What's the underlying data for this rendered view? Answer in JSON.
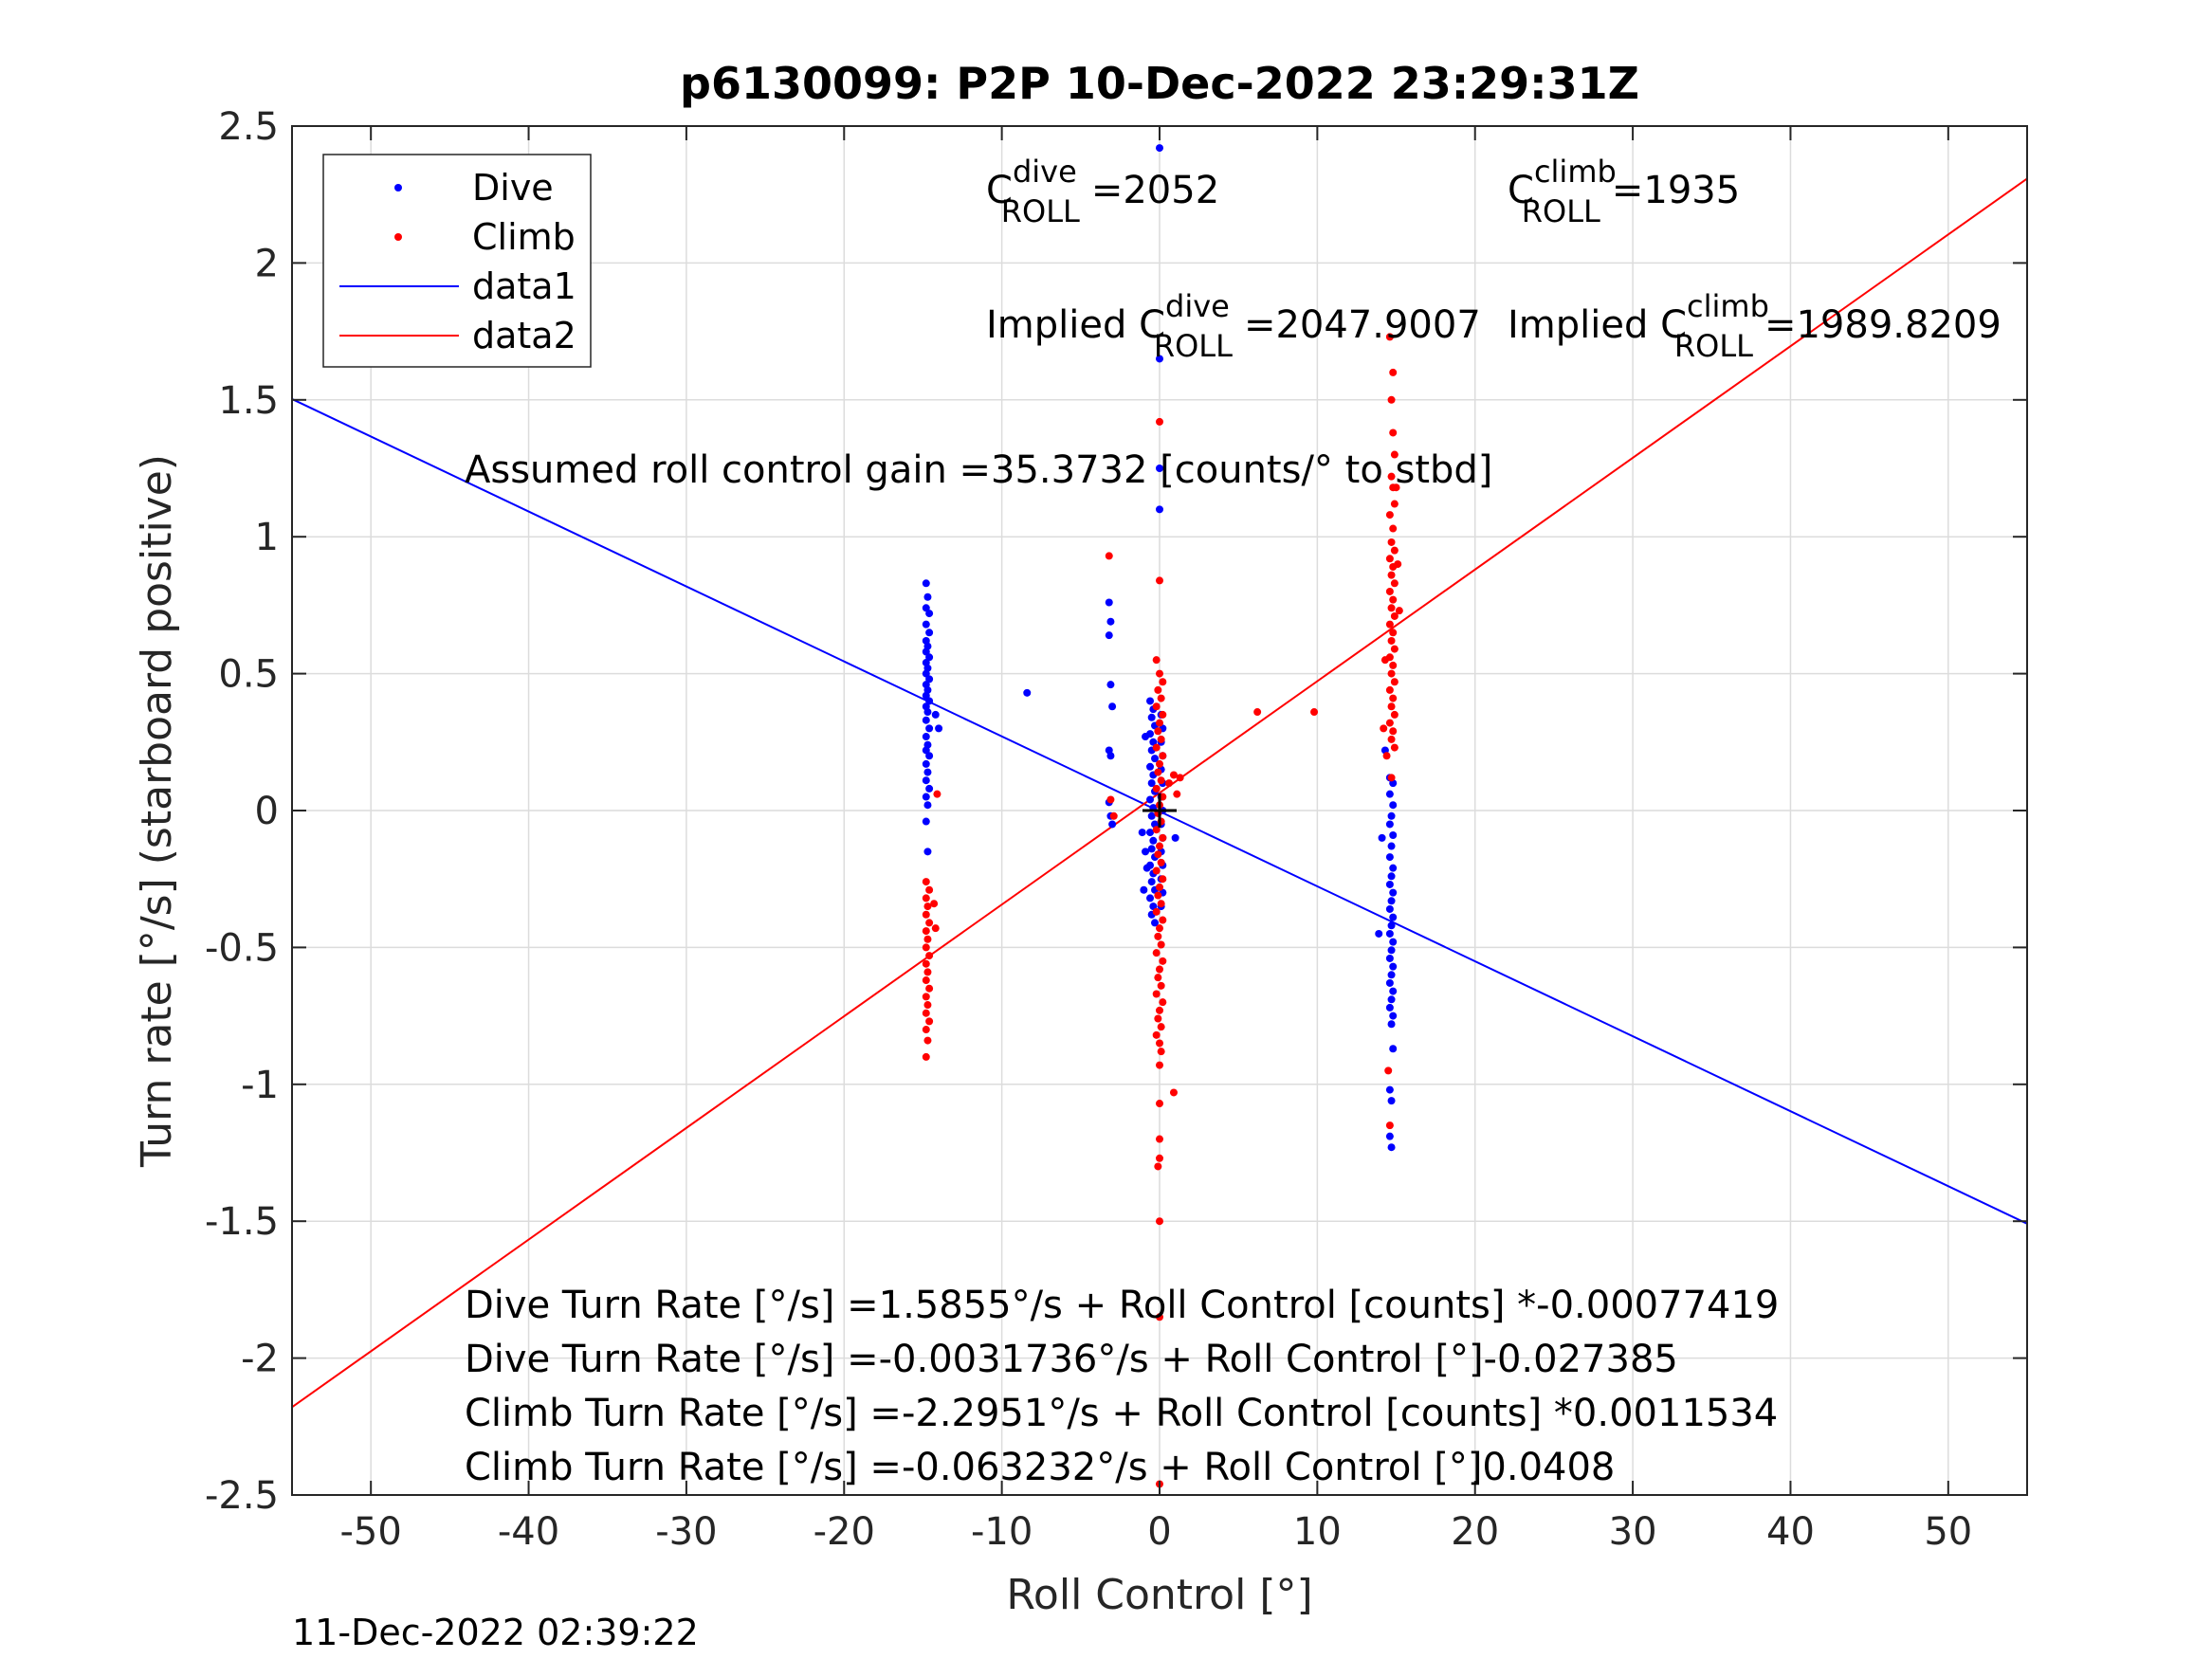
{
  "footer_timestamp": "11-Dec-2022 02:39:22",
  "chart_data": {
    "type": "scatter",
    "title": "p6130099: P2P 10-Dec-2022 23:29:31Z",
    "xlabel": "Roll Control [°]",
    "ylabel": "Turn rate [°/s] (starboard positive)",
    "xlim": [
      -55,
      55
    ],
    "ylim": [
      -2.5,
      2.5
    ],
    "xticks": [
      -50,
      -40,
      -30,
      -20,
      -10,
      0,
      10,
      20,
      30,
      40,
      50
    ],
    "xtick_labels": [
      "-50",
      "-40",
      "-30",
      "-20",
      "-10",
      "0",
      "10",
      "20",
      "30",
      "40",
      "50"
    ],
    "yticks": [
      -2.5,
      -2,
      -1.5,
      -1,
      -0.5,
      0,
      0.5,
      1,
      1.5,
      2,
      2.5
    ],
    "ytick_labels": [
      "-2.5",
      "-2",
      "-1.5",
      "-1",
      "-0.5",
      "0",
      "0.5",
      "1",
      "1.5",
      "2",
      "2.5"
    ],
    "grid": true,
    "legend_position": "top-left",
    "legend": [
      {
        "label": "Dive",
        "kind": "marker",
        "color": "#0000ff"
      },
      {
        "label": "Climb",
        "kind": "marker",
        "color": "#ff0000"
      },
      {
        "label": "data1",
        "kind": "line",
        "color": "#0000ff"
      },
      {
        "label": "data2",
        "kind": "line",
        "color": "#ff0000"
      }
    ],
    "lines": [
      {
        "name": "data1",
        "color": "#0000ff",
        "x": [
          -55,
          55
        ],
        "y": [
          1.503,
          -1.509
        ]
      },
      {
        "name": "data2",
        "color": "#ff0000",
        "x": [
          -55,
          55
        ],
        "y": [
          -2.179,
          2.308
        ]
      }
    ],
    "series": [
      {
        "name": "Dive",
        "color": "#0000ff",
        "points": [
          [
            -14.8,
            0.83
          ],
          [
            -14.7,
            0.78
          ],
          [
            -14.8,
            0.74
          ],
          [
            -14.6,
            0.72
          ],
          [
            -14.8,
            0.68
          ],
          [
            -14.6,
            0.65
          ],
          [
            -14.8,
            0.62
          ],
          [
            -14.7,
            0.6
          ],
          [
            -14.8,
            0.58
          ],
          [
            -14.6,
            0.56
          ],
          [
            -14.8,
            0.54
          ],
          [
            -14.7,
            0.52
          ],
          [
            -14.8,
            0.5
          ],
          [
            -14.6,
            0.48
          ],
          [
            -14.8,
            0.46
          ],
          [
            -14.7,
            0.44
          ],
          [
            -14.8,
            0.42
          ],
          [
            -14.6,
            0.4
          ],
          [
            -14.8,
            0.38
          ],
          [
            -14.7,
            0.36
          ],
          [
            -14.8,
            0.33
          ],
          [
            -14.6,
            0.3
          ],
          [
            -14.8,
            0.27
          ],
          [
            -14.7,
            0.24
          ],
          [
            -14.8,
            0.22
          ],
          [
            -14.6,
            0.2
          ],
          [
            -14.8,
            0.17
          ],
          [
            -14.7,
            0.14
          ],
          [
            -14.8,
            0.11
          ],
          [
            -14.6,
            0.08
          ],
          [
            -14.8,
            0.05
          ],
          [
            -14.7,
            0.02
          ],
          [
            -14.8,
            -0.04
          ],
          [
            -14.7,
            -0.15
          ],
          [
            -14.2,
            0.35
          ],
          [
            -14.0,
            0.3
          ],
          [
            -8.4,
            0.43
          ],
          [
            -3.2,
            0.76
          ],
          [
            -3.1,
            0.69
          ],
          [
            -3.2,
            0.64
          ],
          [
            -3.1,
            0.46
          ],
          [
            -3.0,
            0.38
          ],
          [
            -3.2,
            0.22
          ],
          [
            -3.1,
            0.2
          ],
          [
            -3.2,
            0.03
          ],
          [
            -3.1,
            -0.02
          ],
          [
            -3.0,
            -0.05
          ],
          [
            0.0,
            2.42
          ],
          [
            0.0,
            1.65
          ],
          [
            0.0,
            1.25
          ],
          [
            0.0,
            1.1
          ],
          [
            -0.6,
            0.4
          ],
          [
            -0.4,
            0.37
          ],
          [
            -0.5,
            0.34
          ],
          [
            -0.3,
            0.31
          ],
          [
            -0.6,
            0.28
          ],
          [
            -0.4,
            0.25
          ],
          [
            -0.5,
            0.22
          ],
          [
            -0.3,
            0.19
          ],
          [
            -0.6,
            0.16
          ],
          [
            -0.4,
            0.13
          ],
          [
            -0.5,
            0.1
          ],
          [
            -0.3,
            0.07
          ],
          [
            -0.6,
            0.04
          ],
          [
            -0.4,
            0.01
          ],
          [
            -0.5,
            -0.02
          ],
          [
            -0.3,
            -0.05
          ],
          [
            -0.6,
            -0.08
          ],
          [
            -0.4,
            -0.11
          ],
          [
            -0.5,
            -0.14
          ],
          [
            -0.3,
            -0.17
          ],
          [
            -0.6,
            -0.2
          ],
          [
            -0.4,
            -0.23
          ],
          [
            -0.5,
            -0.26
          ],
          [
            -0.3,
            -0.29
          ],
          [
            -0.6,
            -0.32
          ],
          [
            -0.4,
            -0.35
          ],
          [
            -0.5,
            -0.38
          ],
          [
            -0.3,
            -0.41
          ],
          [
            0.1,
            0.35
          ],
          [
            0.2,
            0.3
          ],
          [
            0.1,
            0.25
          ],
          [
            0.2,
            0.2
          ],
          [
            0.1,
            0.15
          ],
          [
            0.2,
            0.1
          ],
          [
            0.1,
            0.05
          ],
          [
            0.2,
            0.0
          ],
          [
            0.1,
            -0.05
          ],
          [
            0.2,
            -0.1
          ],
          [
            0.1,
            -0.15
          ],
          [
            0.2,
            -0.2
          ],
          [
            0.1,
            -0.25
          ],
          [
            0.2,
            -0.3
          ],
          [
            0.1,
            -0.35
          ],
          [
            -0.9,
            0.27
          ],
          [
            -1.1,
            -0.08
          ],
          [
            -0.9,
            -0.15
          ],
          [
            -0.8,
            -0.21
          ],
          [
            -1.0,
            -0.29
          ],
          [
            1.0,
            -0.1
          ],
          [
            14.3,
            0.22
          ],
          [
            14.6,
            0.12
          ],
          [
            14.8,
            0.1
          ],
          [
            14.6,
            0.06
          ],
          [
            14.8,
            0.02
          ],
          [
            14.7,
            -0.02
          ],
          [
            14.6,
            -0.05
          ],
          [
            14.8,
            -0.09
          ],
          [
            14.7,
            -0.13
          ],
          [
            14.6,
            -0.17
          ],
          [
            14.8,
            -0.21
          ],
          [
            14.7,
            -0.24
          ],
          [
            14.6,
            -0.27
          ],
          [
            14.8,
            -0.3
          ],
          [
            14.7,
            -0.33
          ],
          [
            14.6,
            -0.36
          ],
          [
            14.8,
            -0.39
          ],
          [
            14.7,
            -0.42
          ],
          [
            14.6,
            -0.45
          ],
          [
            14.8,
            -0.48
          ],
          [
            14.7,
            -0.51
          ],
          [
            14.6,
            -0.54
          ],
          [
            14.8,
            -0.57
          ],
          [
            14.7,
            -0.6
          ],
          [
            14.6,
            -0.63
          ],
          [
            14.8,
            -0.66
          ],
          [
            14.7,
            -0.69
          ],
          [
            14.6,
            -0.72
          ],
          [
            14.8,
            -0.75
          ],
          [
            14.7,
            -0.78
          ],
          [
            14.8,
            -0.87
          ],
          [
            14.6,
            -1.02
          ],
          [
            14.7,
            -1.06
          ],
          [
            14.6,
            -1.19
          ],
          [
            14.7,
            -1.23
          ],
          [
            13.9,
            -0.45
          ],
          [
            14.1,
            -0.1
          ]
        ]
      },
      {
        "name": "Climb",
        "color": "#ff0000",
        "points": [
          [
            -14.8,
            -0.26
          ],
          [
            -14.6,
            -0.29
          ],
          [
            -14.8,
            -0.32
          ],
          [
            -14.7,
            -0.35
          ],
          [
            -14.8,
            -0.38
          ],
          [
            -14.6,
            -0.41
          ],
          [
            -14.8,
            -0.44
          ],
          [
            -14.7,
            -0.47
          ],
          [
            -14.8,
            -0.5
          ],
          [
            -14.6,
            -0.53
          ],
          [
            -14.8,
            -0.56
          ],
          [
            -14.7,
            -0.59
          ],
          [
            -14.8,
            -0.62
          ],
          [
            -14.6,
            -0.65
          ],
          [
            -14.8,
            -0.68
          ],
          [
            -14.7,
            -0.71
          ],
          [
            -14.8,
            -0.74
          ],
          [
            -14.6,
            -0.77
          ],
          [
            -14.8,
            -0.8
          ],
          [
            -14.7,
            -0.84
          ],
          [
            -14.8,
            -0.9
          ],
          [
            -14.3,
            -0.34
          ],
          [
            -14.2,
            -0.43
          ],
          [
            -14.1,
            0.06
          ],
          [
            -3.2,
            0.93
          ],
          [
            -3.1,
            0.04
          ],
          [
            -2.9,
            -0.02
          ],
          [
            0.0,
            1.42
          ],
          [
            0.0,
            0.84
          ],
          [
            0.0,
            -1.5
          ],
          [
            0.0,
            -1.85
          ],
          [
            0.0,
            -2.46
          ],
          [
            -0.2,
            0.55
          ],
          [
            0.0,
            0.5
          ],
          [
            0.2,
            0.47
          ],
          [
            -0.1,
            0.44
          ],
          [
            0.1,
            0.41
          ],
          [
            -0.2,
            0.38
          ],
          [
            0.2,
            0.35
          ],
          [
            0.0,
            0.32
          ],
          [
            -0.1,
            0.29
          ],
          [
            0.1,
            0.26
          ],
          [
            -0.2,
            0.23
          ],
          [
            0.2,
            0.2
          ],
          [
            0.0,
            0.17
          ],
          [
            -0.1,
            0.14
          ],
          [
            0.1,
            0.11
          ],
          [
            -0.2,
            0.08
          ],
          [
            0.2,
            0.05
          ],
          [
            0.0,
            0.02
          ],
          [
            -0.1,
            -0.01
          ],
          [
            0.1,
            -0.04
          ],
          [
            -0.2,
            -0.07
          ],
          [
            0.2,
            -0.1
          ],
          [
            0.0,
            -0.13
          ],
          [
            -0.1,
            -0.16
          ],
          [
            0.1,
            -0.19
          ],
          [
            -0.2,
            -0.22
          ],
          [
            0.2,
            -0.25
          ],
          [
            0.0,
            -0.28
          ],
          [
            -0.1,
            -0.31
          ],
          [
            0.1,
            -0.34
          ],
          [
            -0.2,
            -0.37
          ],
          [
            0.2,
            -0.4
          ],
          [
            0.0,
            -0.43
          ],
          [
            -0.1,
            -0.46
          ],
          [
            0.1,
            -0.49
          ],
          [
            -0.2,
            -0.52
          ],
          [
            0.2,
            -0.55
          ],
          [
            0.0,
            -0.58
          ],
          [
            -0.1,
            -0.61
          ],
          [
            0.1,
            -0.64
          ],
          [
            -0.2,
            -0.67
          ],
          [
            0.2,
            -0.7
          ],
          [
            0.0,
            -0.73
          ],
          [
            -0.1,
            -0.76
          ],
          [
            0.1,
            -0.79
          ],
          [
            -0.2,
            -0.82
          ],
          [
            0.0,
            -0.85
          ],
          [
            0.1,
            -0.88
          ],
          [
            0.0,
            -0.93
          ],
          [
            0.0,
            -1.07
          ],
          [
            0.0,
            -1.2
          ],
          [
            0.0,
            -1.27
          ],
          [
            -0.1,
            -1.3
          ],
          [
            0.9,
            -1.03
          ],
          [
            0.6,
            0.1
          ],
          [
            0.9,
            0.13
          ],
          [
            1.3,
            0.12
          ],
          [
            1.1,
            0.06
          ],
          [
            6.2,
            0.36
          ],
          [
            9.8,
            0.36
          ],
          [
            14.6,
            1.73
          ],
          [
            14.8,
            1.6
          ],
          [
            14.7,
            1.5
          ],
          [
            14.8,
            1.38
          ],
          [
            14.9,
            1.3
          ],
          [
            14.7,
            1.22
          ],
          [
            14.8,
            1.18
          ],
          [
            14.9,
            1.12
          ],
          [
            14.6,
            1.08
          ],
          [
            14.8,
            1.03
          ],
          [
            14.7,
            0.98
          ],
          [
            14.9,
            0.95
          ],
          [
            14.6,
            0.92
          ],
          [
            14.8,
            0.89
          ],
          [
            14.7,
            0.86
          ],
          [
            14.9,
            0.83
          ],
          [
            14.6,
            0.8
          ],
          [
            14.8,
            0.77
          ],
          [
            14.7,
            0.74
          ],
          [
            14.9,
            0.71
          ],
          [
            14.6,
            0.68
          ],
          [
            14.8,
            0.65
          ],
          [
            14.7,
            0.62
          ],
          [
            14.9,
            0.59
          ],
          [
            14.6,
            0.56
          ],
          [
            14.8,
            0.53
          ],
          [
            14.7,
            0.5
          ],
          [
            14.9,
            0.47
          ],
          [
            14.6,
            0.44
          ],
          [
            14.8,
            0.41
          ],
          [
            14.7,
            0.38
          ],
          [
            14.9,
            0.35
          ],
          [
            14.6,
            0.32
          ],
          [
            14.8,
            0.29
          ],
          [
            14.7,
            0.26
          ],
          [
            14.9,
            0.23
          ],
          [
            15.1,
            0.9
          ],
          [
            15.2,
            0.73
          ],
          [
            15.0,
            1.18
          ],
          [
            14.3,
            0.55
          ],
          [
            14.2,
            0.3
          ],
          [
            14.4,
            0.2
          ],
          [
            14.7,
            0.12
          ],
          [
            14.5,
            -0.95
          ],
          [
            14.6,
            -1.15
          ]
        ]
      }
    ],
    "annotations": [
      {
        "key": "c_dive",
        "base": "C",
        "sup": "dive",
        "sub": "ROLL",
        "value": "=2052"
      },
      {
        "key": "c_climb",
        "base": "C",
        "sup": "climb",
        "sub": "ROLL",
        "value": "=1935"
      },
      {
        "key": "implied_dive",
        "prefix": "Implied C",
        "sup": "dive",
        "sub": "ROLL",
        "value": "=2047.9007"
      },
      {
        "key": "implied_climb",
        "prefix": "Implied C",
        "sup": "climb",
        "sub": "ROLL",
        "value": "=1989.8209"
      },
      {
        "key": "gain",
        "text": "Assumed roll control gain =35.3732 [counts/° to stbd]"
      },
      {
        "key": "fit1",
        "text": "Dive Turn Rate [°/s] =1.5855°/s + Roll Control [counts] *-0.00077419"
      },
      {
        "key": "fit2",
        "text": "Dive Turn Rate [°/s] =-0.0031736°/s + Roll Control [°]-0.027385"
      },
      {
        "key": "fit3",
        "text": "Climb Turn Rate [°/s] =-2.2951°/s + Roll Control [counts] *0.0011534"
      },
      {
        "key": "fit4",
        "text": "Climb Turn Rate [°/s] =-0.063232°/s + Roll Control [°]0.0408"
      }
    ],
    "center_marker": {
      "x": 0,
      "y": 0
    }
  }
}
